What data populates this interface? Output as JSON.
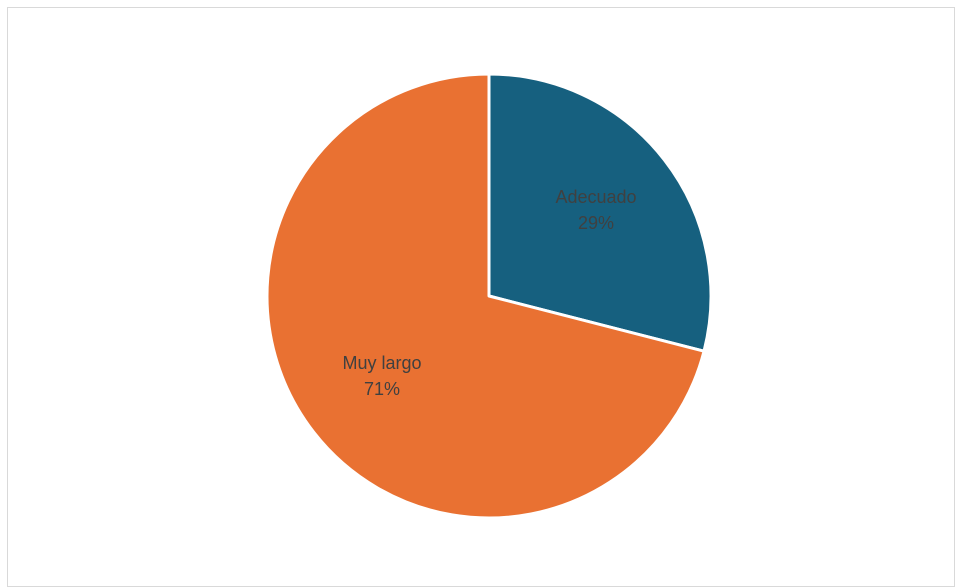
{
  "chart_data": {
    "type": "pie",
    "title": "",
    "slices": [
      {
        "name": "Adecuado",
        "value": 29,
        "percent_label": "29%",
        "color": "#16607f"
      },
      {
        "name": "Muy largo",
        "value": 71,
        "percent_label": "71%",
        "color": "#e97132"
      }
    ],
    "start_angle_deg": 0,
    "direction": "clockwise",
    "legend": "none",
    "data_labels": "inside"
  }
}
